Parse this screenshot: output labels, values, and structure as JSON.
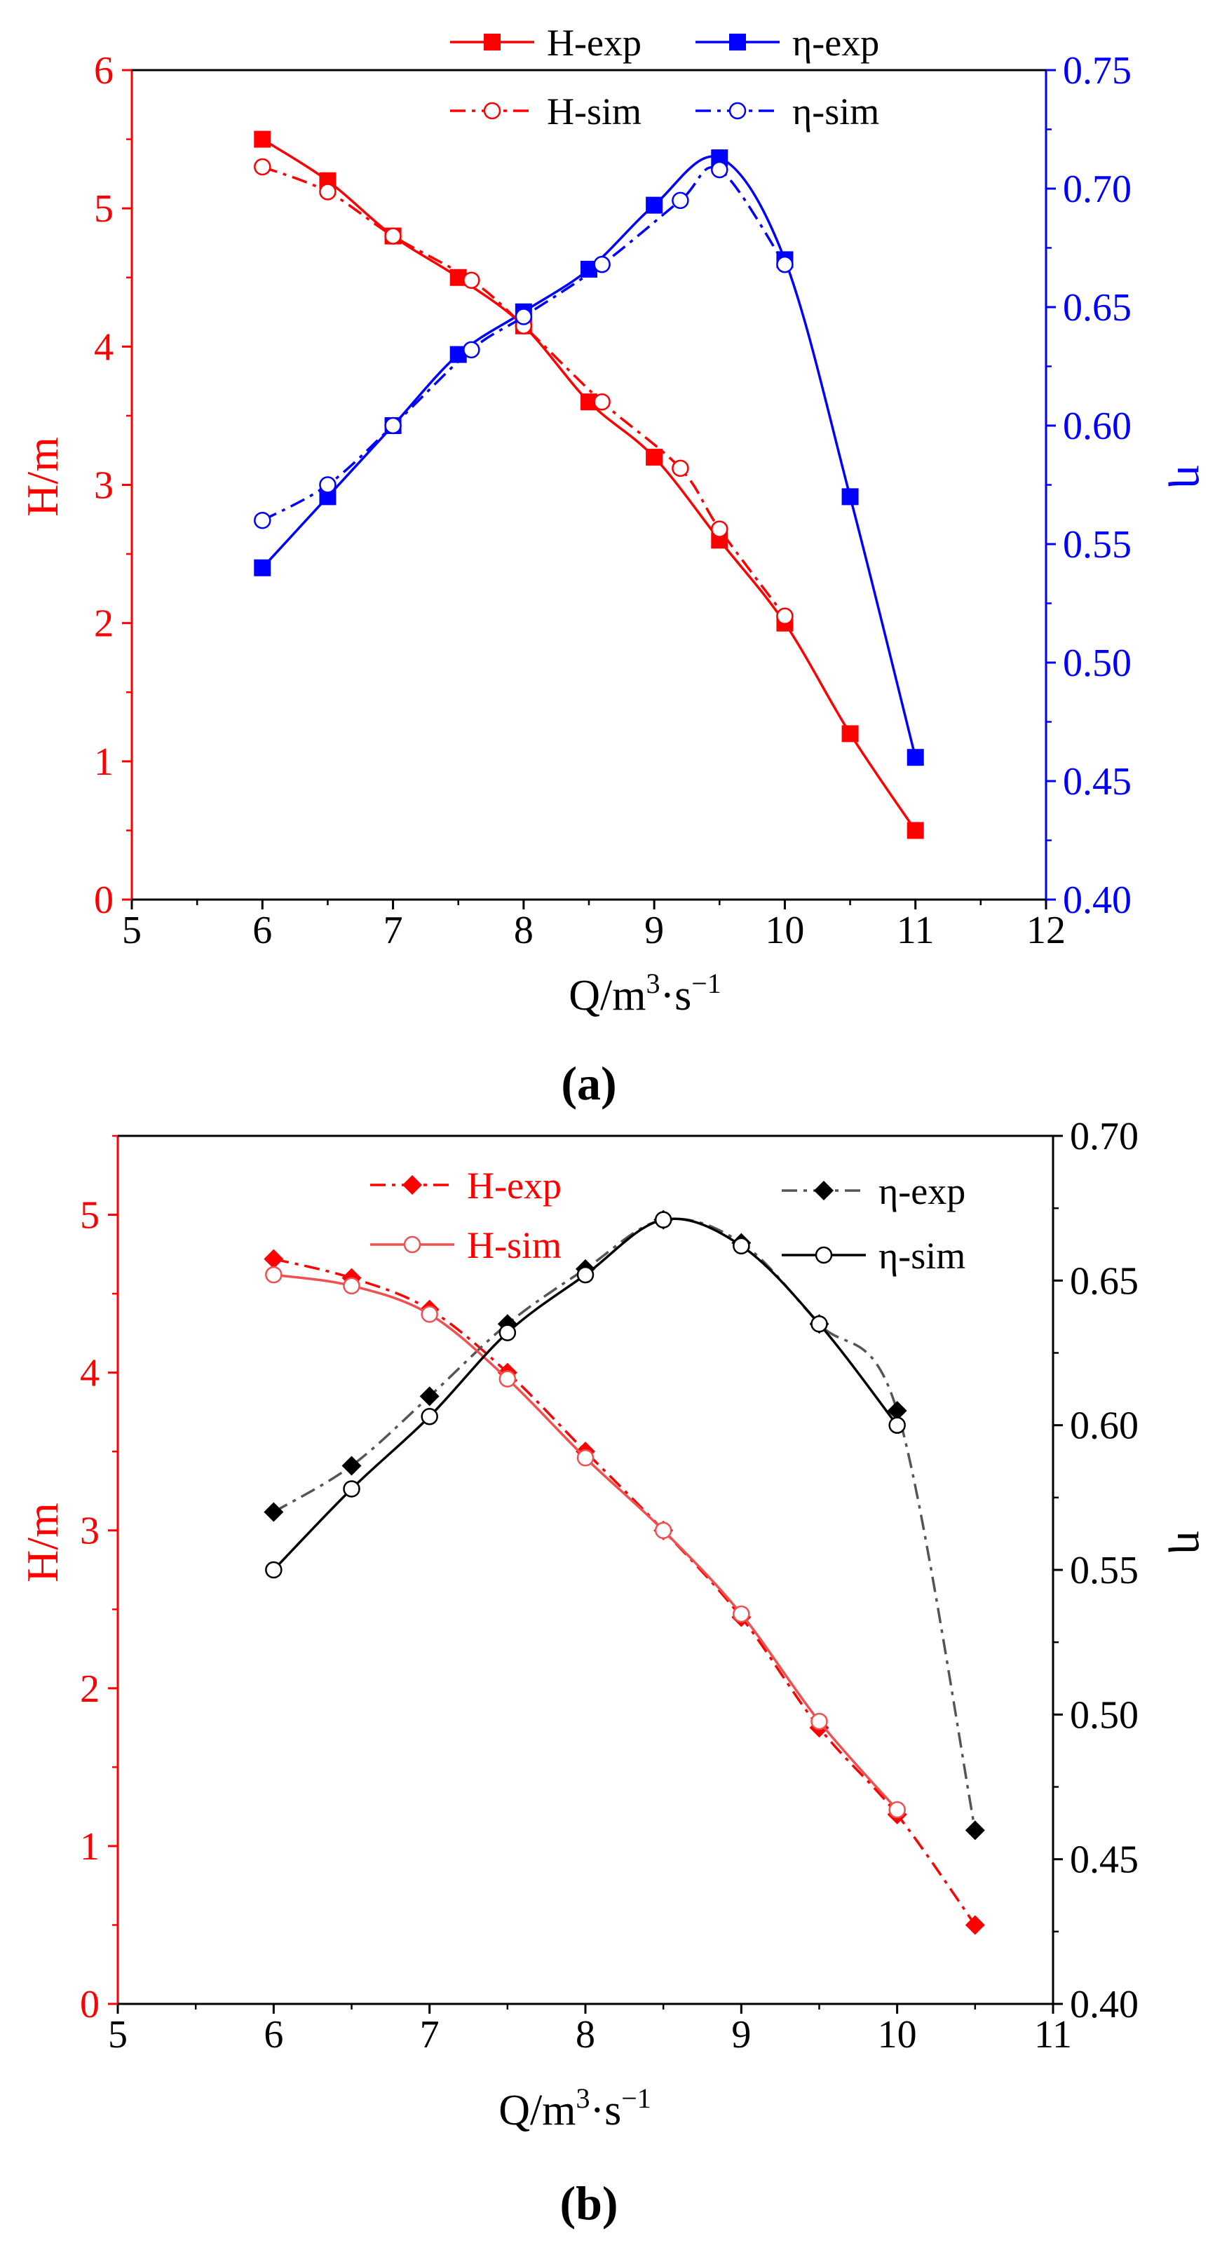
{
  "colors": {
    "red": "#ff0000",
    "blue": "#0000ff",
    "black": "#000000",
    "gray": "#555555",
    "sim_red": "#f05050"
  },
  "chart_data": [
    {
      "type": "line",
      "panel_label": "(a)",
      "xlabel_main": "Q/m",
      "xlabel_exp1": "3",
      "xlabel_mid": "·s",
      "xlabel_exp2": "−1",
      "ylabel_left": "H/m",
      "ylabel_right": "η",
      "xlim": [
        5,
        12
      ],
      "ylim_left": [
        0,
        6
      ],
      "ylim_right": [
        0.4,
        0.75
      ],
      "x_ticks": [
        "5",
        "6",
        "7",
        "8",
        "9",
        "10",
        "11",
        "12"
      ],
      "y_left_ticks": [
        "0",
        "1",
        "2",
        "3",
        "4",
        "5",
        "6"
      ],
      "y_right_ticks": [
        "0.40",
        "0.45",
        "0.50",
        "0.55",
        "0.60",
        "0.65",
        "0.70",
        "0.75"
      ],
      "legend": [
        "H-exp",
        "η-exp",
        "H-sim",
        "η-sim"
      ],
      "series": [
        {
          "name": "H-exp",
          "axis": "left",
          "color": "#ff0000",
          "dash": "solid",
          "marker": "square-filled",
          "x": [
            6,
            6.5,
            7,
            7.5,
            8,
            8.5,
            9,
            9.5,
            10,
            10.5,
            11
          ],
          "values": [
            5.5,
            5.2,
            4.8,
            4.5,
            4.15,
            3.6,
            3.2,
            2.6,
            2.0,
            1.2,
            0.5
          ]
        },
        {
          "name": "η-exp",
          "axis": "right",
          "color": "#0000ff",
          "dash": "solid",
          "marker": "square-filled",
          "x": [
            6,
            6.5,
            7,
            7.5,
            8,
            8.5,
            9,
            9.5,
            10,
            10.5,
            11
          ],
          "values": [
            0.54,
            0.57,
            0.6,
            0.63,
            0.648,
            0.666,
            0.693,
            0.713,
            0.67,
            0.57,
            0.46
          ]
        },
        {
          "name": "H-sim",
          "axis": "left",
          "color": "#ff0000",
          "dash": "dashdot",
          "marker": "circle-open",
          "x": [
            6,
            6.5,
            7,
            7.6,
            8,
            8.6,
            9.2,
            9.5,
            10
          ],
          "values": [
            5.3,
            5.12,
            4.8,
            4.48,
            4.15,
            3.6,
            3.12,
            2.68,
            2.05
          ]
        },
        {
          "name": "η-sim",
          "axis": "right",
          "color": "#0000ff",
          "dash": "dashdot",
          "marker": "circle-open",
          "x": [
            6,
            6.5,
            7,
            7.6,
            8,
            8.6,
            9.2,
            9.5,
            10
          ],
          "values": [
            0.56,
            0.575,
            0.6,
            0.632,
            0.646,
            0.668,
            0.695,
            0.708,
            0.668
          ]
        }
      ]
    },
    {
      "type": "line",
      "panel_label": "(b)",
      "xlabel_main": "Q/m",
      "xlabel_exp1": "3",
      "xlabel_mid": "·s",
      "xlabel_exp2": "−1",
      "ylabel_left": "H/m",
      "ylabel_right": "η",
      "xlim": [
        5,
        11
      ],
      "ylim_left": [
        0,
        5.5
      ],
      "ylim_right": [
        0.4,
        0.7
      ],
      "x_ticks": [
        "5",
        "6",
        "7",
        "8",
        "9",
        "10",
        "11"
      ],
      "y_left_ticks": [
        "0",
        "1",
        "2",
        "3",
        "4",
        "5"
      ],
      "y_right_ticks": [
        "0.40",
        "0.45",
        "0.50",
        "0.55",
        "0.60",
        "0.65",
        "0.70"
      ],
      "legend": [
        "H-exp",
        "η-exp",
        "H-sim",
        "η-sim"
      ],
      "series": [
        {
          "name": "H-exp",
          "axis": "left",
          "color": "#ff0000",
          "dash": "dashdot",
          "marker": "diamond-filled",
          "x": [
            6,
            6.5,
            7,
            7.5,
            8,
            8.5,
            9,
            9.5,
            10,
            10.5
          ],
          "values": [
            4.72,
            4.6,
            4.4,
            4.0,
            3.5,
            3.0,
            2.45,
            1.75,
            1.2,
            0.5
          ]
        },
        {
          "name": "η-exp",
          "axis": "right",
          "color": "#555555",
          "dash": "dashdot",
          "marker": "diamond-filled-black",
          "x": [
            6,
            6.5,
            7,
            7.5,
            8,
            8.5,
            9,
            9.5,
            10,
            10.5
          ],
          "values": [
            0.57,
            0.586,
            0.61,
            0.635,
            0.654,
            0.671,
            0.663,
            0.635,
            0.605,
            0.46
          ]
        },
        {
          "name": "H-sim",
          "axis": "left",
          "color": "#f05050",
          "dash": "solid",
          "marker": "circle-open",
          "x": [
            6,
            6.5,
            7,
            7.5,
            8,
            8.5,
            9,
            9.5,
            10
          ],
          "values": [
            4.62,
            4.55,
            4.37,
            3.96,
            3.46,
            3.0,
            2.47,
            1.79,
            1.23
          ]
        },
        {
          "name": "η-sim",
          "axis": "right",
          "color": "#000000",
          "dash": "solid",
          "marker": "circle-open-black",
          "x": [
            6,
            6.5,
            7,
            7.5,
            8,
            8.5,
            9,
            9.5,
            10
          ],
          "values": [
            0.55,
            0.578,
            0.603,
            0.632,
            0.652,
            0.671,
            0.662,
            0.635,
            0.6
          ]
        }
      ]
    }
  ]
}
